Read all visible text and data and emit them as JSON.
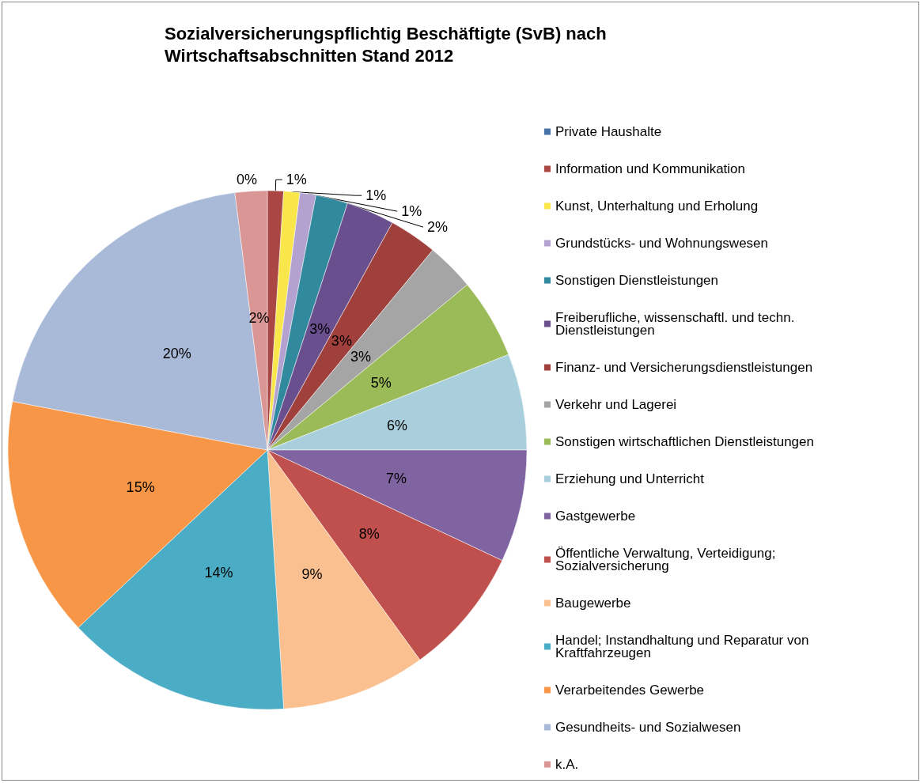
{
  "chart_data": {
    "type": "pie",
    "title": "Sozialversicherungspflichtig Beschäftigte (SvB) nach Wirtschaftsabschnitten Stand 2012",
    "categories": [
      "Private Haushalte",
      "Information und Kommunikation",
      "Kunst, Unterhaltung und Erholung",
      "Grundstücks- und Wohnungswesen",
      "Sonstigen Dienstleistungen",
      "Freiberufliche, wissenschaftl. und techn. Dienstleistungen",
      "Finanz- und Versicherungsdienstleistungen",
      "Verkehr und Lagerei",
      "Sonstigen wirtschaftlichen Dienstleistungen",
      "Erziehung und Unterricht",
      "Gastgewerbe",
      "Öffentliche Verwaltung, Verteidigung; Sozialversicherung",
      "Baugewerbe",
      "Handel; Instandhaltung und Reparatur von Kraftfahrzeugen",
      "Verarbeitendes Gewerbe",
      "Gesundheits- und Sozialwesen",
      "k.A."
    ],
    "values": [
      0,
      1,
      1,
      1,
      2,
      3,
      3,
      3,
      5,
      6,
      7,
      8,
      9,
      14,
      15,
      20,
      2
    ],
    "value_labels": [
      "0%",
      "1%",
      "1%",
      "1%",
      "2%",
      "3%",
      "3%",
      "3%",
      "5%",
      "6%",
      "7%",
      "8%",
      "9%",
      "14%",
      "15%",
      "20%",
      "2%"
    ],
    "colors": [
      "#4572a7",
      "#aa4643",
      "#f8e64a",
      "#b3a2cf",
      "#31899e",
      "#6a4f8f",
      "#a0403c",
      "#a5a5a5",
      "#9bbb59",
      "#a9cfdc",
      "#8064a2",
      "#c0504d",
      "#fac090",
      "#4bacc6",
      "#f79646",
      "#a9b9d8",
      "#d99694"
    ],
    "legend": "right"
  }
}
